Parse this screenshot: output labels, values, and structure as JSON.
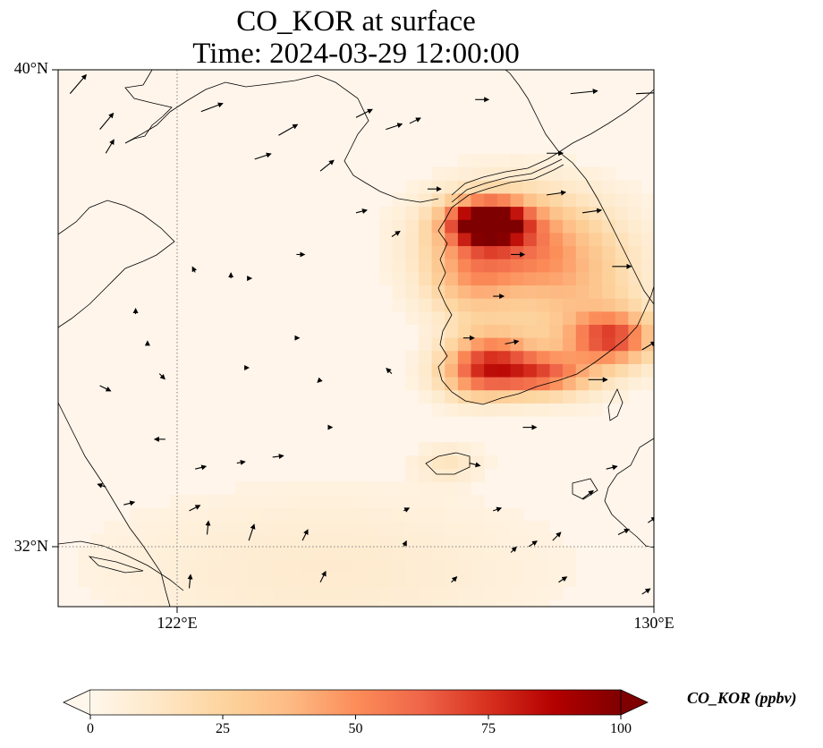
{
  "title": {
    "line1": "CO_KOR at surface",
    "line2": "Time: 2024-03-29 12:00:00"
  },
  "map": {
    "lon_range": [
      120,
      130
    ],
    "lat_range": [
      31,
      40
    ],
    "lat_ticks": [
      "40°N",
      "32°N"
    ],
    "lon_ticks": [
      "122°E",
      "130°E"
    ],
    "gridlines": "dotted",
    "background_color": "#fff5eb"
  },
  "chart_data": {
    "type": "heatmap",
    "variable": "CO_KOR",
    "colormap": "OrRd",
    "vmin": 0,
    "vmax": 100,
    "hotspots": [
      {
        "lon": 127.2,
        "lat": 37.45,
        "value": 100,
        "sigma_lon": 0.45,
        "sigma_lat": 0.25
      },
      {
        "lon": 127.6,
        "lat": 37.1,
        "value": 45,
        "sigma_lon": 0.9,
        "sigma_lat": 0.6
      },
      {
        "lon": 126.9,
        "lat": 36.5,
        "value": 25,
        "sigma_lon": 0.5,
        "sigma_lat": 0.5
      },
      {
        "lon": 127.3,
        "lat": 35.2,
        "value": 40,
        "sigma_lon": 0.5,
        "sigma_lat": 0.35
      },
      {
        "lon": 127.0,
        "lat": 34.9,
        "value": 35,
        "sigma_lon": 0.45,
        "sigma_lat": 0.3
      },
      {
        "lon": 128.1,
        "lat": 34.9,
        "value": 55,
        "sigma_lon": 0.6,
        "sigma_lat": 0.25
      },
      {
        "lon": 129.3,
        "lat": 35.5,
        "value": 60,
        "sigma_lon": 0.5,
        "sigma_lat": 0.3
      },
      {
        "lon": 128.7,
        "lat": 36.3,
        "value": 25,
        "sigma_lon": 0.8,
        "sigma_lat": 0.8
      },
      {
        "lon": 126.55,
        "lat": 33.4,
        "value": 12,
        "sigma_lon": 0.35,
        "sigma_lat": 0.2
      },
      {
        "lon": 124.5,
        "lat": 31.6,
        "value": 8,
        "sigma_lon": 2.5,
        "sigma_lat": 0.9
      }
    ],
    "wind_vectors": [
      {
        "lon": 120.2,
        "lat": 39.6,
        "u": 0.6,
        "v": 0.7
      },
      {
        "lon": 120.7,
        "lat": 39.0,
        "u": 0.5,
        "v": 0.6
      },
      {
        "lon": 120.8,
        "lat": 38.6,
        "u": 0.3,
        "v": 0.5
      },
      {
        "lon": 122.4,
        "lat": 39.3,
        "u": 0.8,
        "v": 0.3
      },
      {
        "lon": 123.3,
        "lat": 38.5,
        "u": 0.6,
        "v": 0.2
      },
      {
        "lon": 123.7,
        "lat": 38.9,
        "u": 0.7,
        "v": 0.4
      },
      {
        "lon": 124.4,
        "lat": 38.3,
        "u": 0.5,
        "v": 0.4
      },
      {
        "lon": 125.0,
        "lat": 39.2,
        "u": 0.6,
        "v": 0.3
      },
      {
        "lon": 125.5,
        "lat": 39.0,
        "u": 0.6,
        "v": 0.2
      },
      {
        "lon": 125.9,
        "lat": 39.1,
        "u": 0.4,
        "v": 0.2
      },
      {
        "lon": 127.0,
        "lat": 39.5,
        "u": 0.5,
        "v": 0.0
      },
      {
        "lon": 128.6,
        "lat": 39.6,
        "u": 1.0,
        "v": 0.1
      },
      {
        "lon": 129.7,
        "lat": 39.6,
        "u": 1.2,
        "v": 0.05
      },
      {
        "lon": 128.2,
        "lat": 38.6,
        "u": 0.6,
        "v": 0.0
      },
      {
        "lon": 128.2,
        "lat": 37.9,
        "u": 0.7,
        "v": 0.1
      },
      {
        "lon": 128.8,
        "lat": 37.6,
        "u": 0.7,
        "v": 0.1
      },
      {
        "lon": 129.3,
        "lat": 36.7,
        "u": 0.7,
        "v": 0.0
      },
      {
        "lon": 127.6,
        "lat": 36.9,
        "u": 0.5,
        "v": 0.0
      },
      {
        "lon": 127.3,
        "lat": 36.2,
        "u": 0.4,
        "v": 0.0
      },
      {
        "lon": 127.5,
        "lat": 35.4,
        "u": 0.5,
        "v": 0.1
      },
      {
        "lon": 126.8,
        "lat": 35.5,
        "u": 0.4,
        "v": 0.0
      },
      {
        "lon": 128.9,
        "lat": 34.8,
        "u": 0.7,
        "v": 0.0
      },
      {
        "lon": 129.8,
        "lat": 35.3,
        "u": 0.5,
        "v": 0.3
      },
      {
        "lon": 127.8,
        "lat": 34.0,
        "u": 0.5,
        "v": 0.0
      },
      {
        "lon": 126.9,
        "lat": 33.4,
        "u": 0.4,
        "v": -0.1
      },
      {
        "lon": 126.2,
        "lat": 38.0,
        "u": 0.5,
        "v": 0.0
      },
      {
        "lon": 125.0,
        "lat": 37.6,
        "u": 0.4,
        "v": 0.1
      },
      {
        "lon": 124.0,
        "lat": 36.9,
        "u": 0.3,
        "v": 0.0
      },
      {
        "lon": 125.6,
        "lat": 37.2,
        "u": 0.3,
        "v": 0.2
      },
      {
        "lon": 123.2,
        "lat": 36.5,
        "u": 0.1,
        "v": 0.0
      },
      {
        "lon": 122.3,
        "lat": 36.6,
        "u": -0.1,
        "v": 0.2
      },
      {
        "lon": 122.9,
        "lat": 36.5,
        "u": 0.0,
        "v": 0.2
      },
      {
        "lon": 121.3,
        "lat": 35.9,
        "u": 0.0,
        "v": 0.2
      },
      {
        "lon": 121.5,
        "lat": 35.4,
        "u": 0.0,
        "v": 0.1
      },
      {
        "lon": 121.7,
        "lat": 34.9,
        "u": 0.2,
        "v": -0.2
      },
      {
        "lon": 120.7,
        "lat": 34.7,
        "u": 0.4,
        "v": -0.2
      },
      {
        "lon": 121.8,
        "lat": 33.8,
        "u": -0.4,
        "v": 0.0
      },
      {
        "lon": 122.3,
        "lat": 33.3,
        "u": 0.4,
        "v": 0.1
      },
      {
        "lon": 123.0,
        "lat": 33.4,
        "u": 0.3,
        "v": 0.05
      },
      {
        "lon": 123.6,
        "lat": 33.5,
        "u": 0.4,
        "v": 0.05
      },
      {
        "lon": 120.8,
        "lat": 33.0,
        "u": -0.3,
        "v": 0.1
      },
      {
        "lon": 121.1,
        "lat": 32.7,
        "u": 0.4,
        "v": 0.1
      },
      {
        "lon": 122.2,
        "lat": 32.6,
        "u": 0.4,
        "v": 0.2
      },
      {
        "lon": 122.5,
        "lat": 32.2,
        "u": 0.05,
        "v": 0.5
      },
      {
        "lon": 123.2,
        "lat": 32.1,
        "u": 0.2,
        "v": 0.6
      },
      {
        "lon": 124.1,
        "lat": 32.1,
        "u": 0.2,
        "v": 0.4
      },
      {
        "lon": 124.4,
        "lat": 31.4,
        "u": 0.2,
        "v": 0.4
      },
      {
        "lon": 122.2,
        "lat": 31.3,
        "u": 0.05,
        "v": 0.5
      },
      {
        "lon": 125.8,
        "lat": 32.0,
        "u": 0.1,
        "v": 0.2
      },
      {
        "lon": 125.8,
        "lat": 32.6,
        "u": 0.2,
        "v": 0.1
      },
      {
        "lon": 126.6,
        "lat": 31.4,
        "u": 0.2,
        "v": 0.2
      },
      {
        "lon": 127.3,
        "lat": 32.6,
        "u": 0.3,
        "v": 0.1
      },
      {
        "lon": 127.6,
        "lat": 31.9,
        "u": 0.2,
        "v": 0.2
      },
      {
        "lon": 127.9,
        "lat": 32.0,
        "u": 0.3,
        "v": 0.2
      },
      {
        "lon": 128.3,
        "lat": 32.1,
        "u": 0.3,
        "v": 0.3
      },
      {
        "lon": 128.4,
        "lat": 31.4,
        "u": 0.3,
        "v": 0.2
      },
      {
        "lon": 129.4,
        "lat": 32.2,
        "u": 0.4,
        "v": 0.2
      },
      {
        "lon": 129.8,
        "lat": 31.2,
        "u": 0.3,
        "v": 0.2
      },
      {
        "lon": 129.9,
        "lat": 32.4,
        "u": 0.3,
        "v": 0.2
      },
      {
        "lon": 128.8,
        "lat": 32.8,
        "u": 0.4,
        "v": 0.3
      },
      {
        "lon": 129.2,
        "lat": 33.3,
        "u": 0.4,
        "v": 0.1
      },
      {
        "lon": 125.6,
        "lat": 34.9,
        "u": -0.2,
        "v": 0.2
      },
      {
        "lon": 124.6,
        "lat": 34.0,
        "u": 0.0,
        "v": 0.0
      },
      {
        "lon": 124.4,
        "lat": 34.8,
        "u": -0.1,
        "v": -0.1
      },
      {
        "lon": 123.2,
        "lat": 35.0,
        "u": 0.0,
        "v": 0.0
      },
      {
        "lon": 124.0,
        "lat": 35.5,
        "u": 0.1,
        "v": 0.0
      }
    ]
  },
  "colorbar": {
    "label": "CO_KOR (ppbv)",
    "ticks": [
      "0",
      "25",
      "50",
      "75",
      "100"
    ],
    "extend": "both"
  }
}
